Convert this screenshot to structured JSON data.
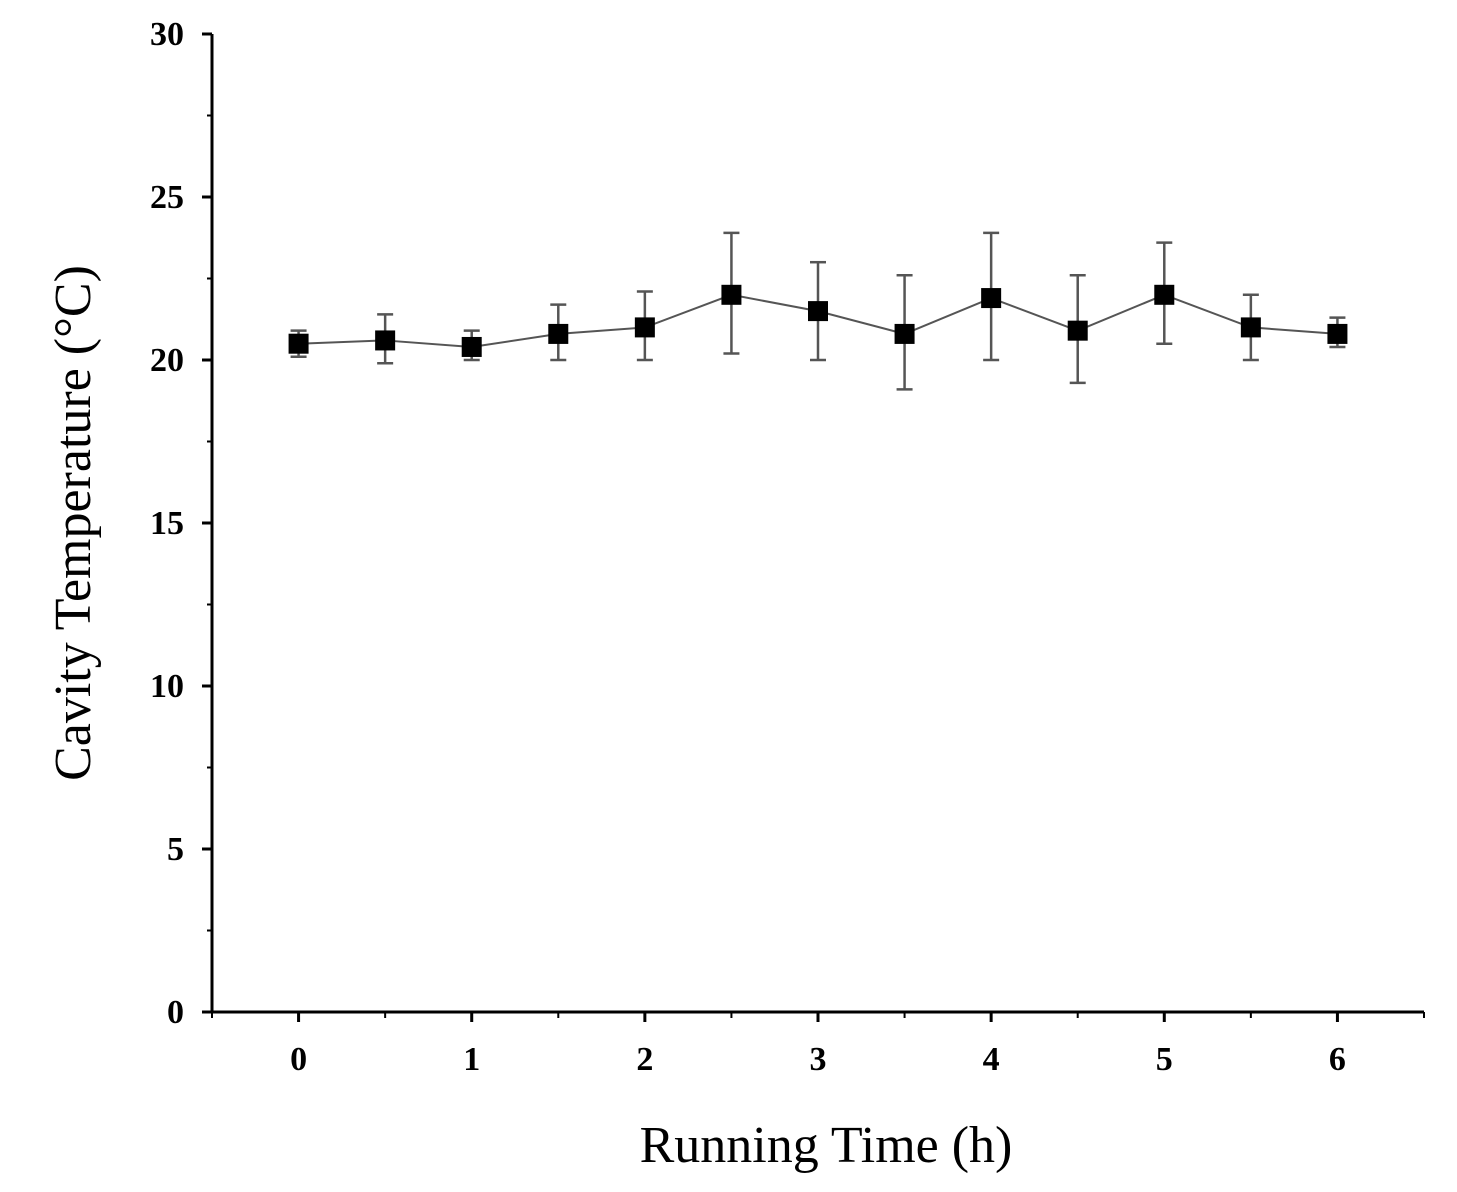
{
  "chart_data": {
    "type": "scatter",
    "xlabel": "Running Time (h)",
    "ylabel": "Cavity Temperature (°C)",
    "xlim": [
      -0.5,
      6.5
    ],
    "ylim": [
      0,
      30
    ],
    "x_ticks": [
      "0",
      "1",
      "2",
      "3",
      "4",
      "5",
      "6"
    ],
    "y_ticks": [
      "0",
      "5",
      "10",
      "15",
      "20",
      "25",
      "30"
    ],
    "grid": false,
    "legend": "none",
    "marker": "square",
    "connect_points": true,
    "series": [
      {
        "x": [
          0,
          0.5,
          1,
          1.5,
          2,
          2.5,
          3,
          3.5,
          4,
          4.5,
          5,
          5.5,
          6
        ],
        "y": [
          20.5,
          20.6,
          20.4,
          20.8,
          21.0,
          22.0,
          21.5,
          20.8,
          21.9,
          20.9,
          22.0,
          21.0,
          20.8
        ],
        "err_low": [
          20.1,
          19.9,
          20.0,
          20.0,
          20.0,
          20.2,
          20.0,
          19.1,
          20.0,
          19.3,
          20.5,
          20.0,
          20.4
        ],
        "err_high": [
          20.9,
          21.4,
          20.9,
          21.7,
          22.1,
          23.9,
          23.0,
          22.6,
          23.9,
          22.6,
          23.6,
          22.0,
          21.3
        ]
      }
    ],
    "colors": {
      "marker": "#000000",
      "line": "#555555",
      "axis": "#000000"
    }
  }
}
